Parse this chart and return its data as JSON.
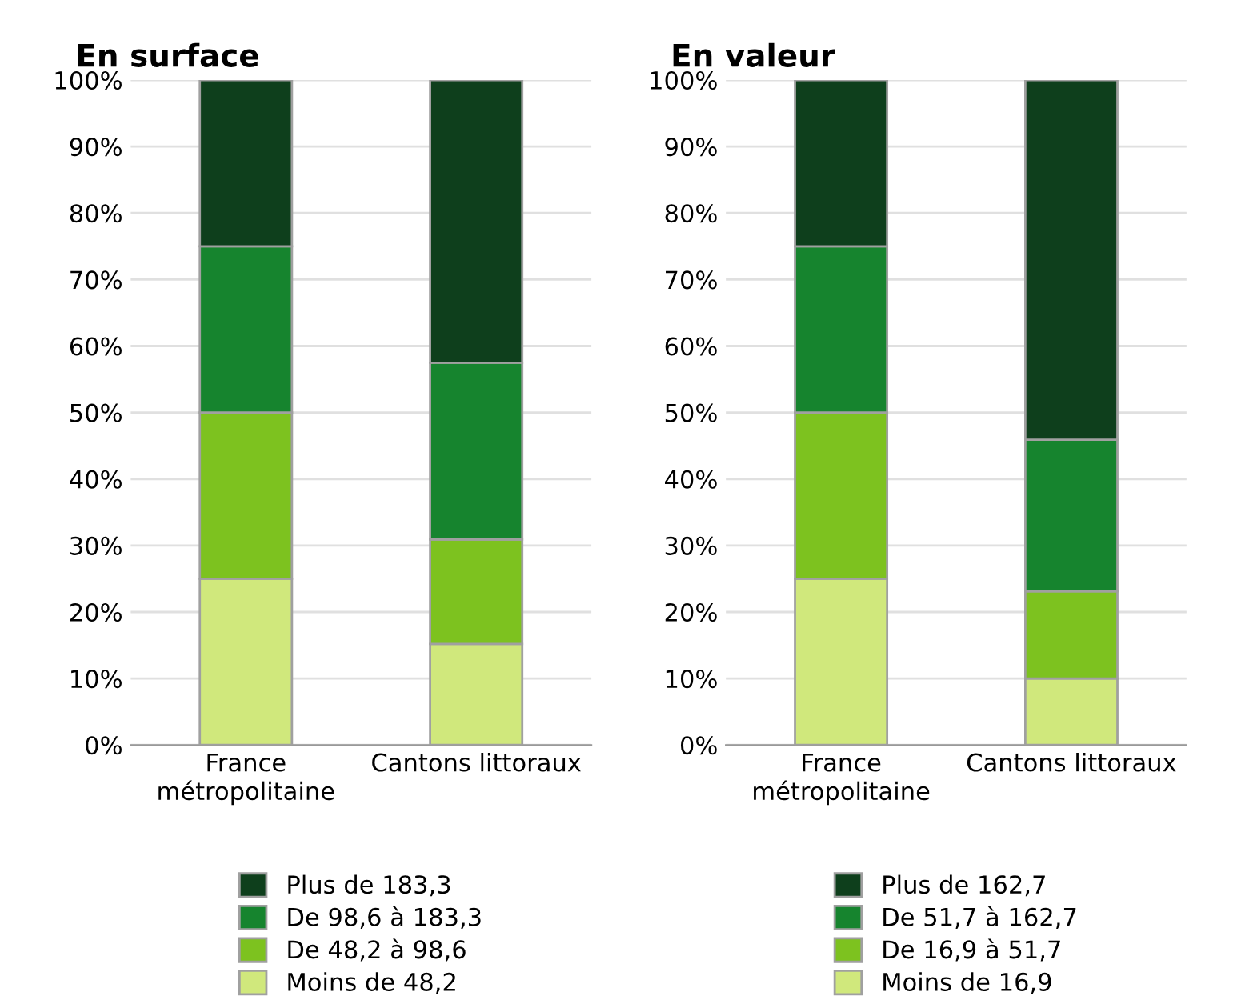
{
  "chart_data": [
    {
      "type": "bar",
      "title": "En surface",
      "categories": [
        "France\nmétropolitaine",
        "Cantons littoraux"
      ],
      "stacked": true,
      "ylim": [
        0,
        100
      ],
      "yticks": [
        {
          "value": 0,
          "label": "0%"
        },
        {
          "value": 10,
          "label": "10%"
        },
        {
          "value": 20,
          "label": "20%"
        },
        {
          "value": 30,
          "label": "30%"
        },
        {
          "value": 40,
          "label": "40%"
        },
        {
          "value": 50,
          "label": "50%"
        },
        {
          "value": 60,
          "label": "60%"
        },
        {
          "value": 70,
          "label": "70%"
        },
        {
          "value": 80,
          "label": "80%"
        },
        {
          "value": 90,
          "label": "90%"
        },
        {
          "value": 100,
          "label": "100%"
        }
      ],
      "grid": "y",
      "legend": "bottom",
      "series": [
        {
          "name": "Moins de 48,2",
          "color": "#d0e87c",
          "values": [
            25,
            15.2
          ]
        },
        {
          "name": "De 48,2 à 98,6",
          "color": "#7dc21f",
          "values": [
            25,
            15.7
          ]
        },
        {
          "name": "De 98,6 à 183,3",
          "color": "#16842e",
          "values": [
            25,
            26.6
          ]
        },
        {
          "name": "Plus de 183,3",
          "color": "#0e3f1c",
          "values": [
            25,
            42.5
          ]
        }
      ]
    },
    {
      "type": "bar",
      "title": "En valeur",
      "categories": [
        "France\nmétropolitaine",
        "Cantons littoraux"
      ],
      "stacked": true,
      "ylim": [
        0,
        100
      ],
      "yticks": [
        {
          "value": 0,
          "label": "0%"
        },
        {
          "value": 10,
          "label": "10%"
        },
        {
          "value": 20,
          "label": "20%"
        },
        {
          "value": 30,
          "label": "30%"
        },
        {
          "value": 40,
          "label": "40%"
        },
        {
          "value": 50,
          "label": "50%"
        },
        {
          "value": 60,
          "label": "60%"
        },
        {
          "value": 70,
          "label": "70%"
        },
        {
          "value": 80,
          "label": "80%"
        },
        {
          "value": 90,
          "label": "90%"
        },
        {
          "value": 100,
          "label": "100%"
        }
      ],
      "grid": "y",
      "legend": "bottom",
      "series": [
        {
          "name": "Moins de 16,9",
          "color": "#d0e87c",
          "values": [
            25,
            10
          ]
        },
        {
          "name": "De 16,9 à 51,7",
          "color": "#7dc21f",
          "values": [
            25,
            13.1
          ]
        },
        {
          "name": "De 51,7 à 162,7",
          "color": "#16842e",
          "values": [
            25,
            22.8
          ]
        },
        {
          "name": "Plus de 162,7",
          "color": "#0e3f1c",
          "values": [
            25,
            54.1
          ]
        }
      ]
    }
  ]
}
